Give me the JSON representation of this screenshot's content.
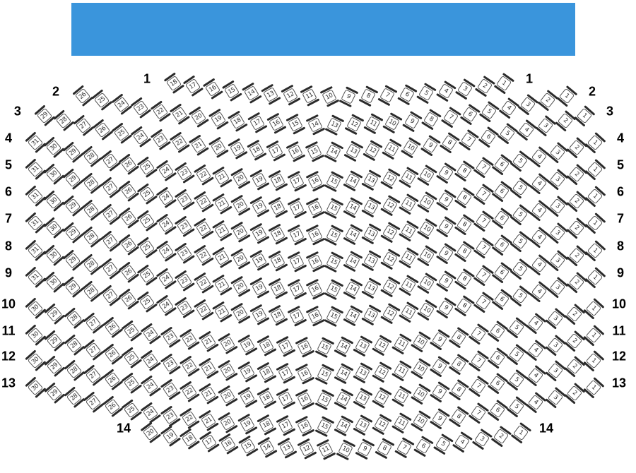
{
  "page": {
    "background": "#ffffff"
  },
  "stage": {
    "color": "#3a95dc"
  },
  "seatmap": {
    "seat_style": {
      "fill": "#ffffff",
      "frame_bar_color": "#2b2b2b",
      "border_color": "#4f4f4f",
      "number_color": "#2e2e2e"
    },
    "row_label_color": "#000000",
    "rows": [
      {
        "label": "1",
        "seats": [
          18,
          17,
          16,
          15,
          14,
          13,
          12,
          11,
          10,
          9,
          8,
          7,
          6,
          5,
          4,
          3,
          2,
          1
        ]
      },
      {
        "label": "2",
        "seats": [
          26,
          25,
          24,
          23,
          22,
          21,
          20,
          19,
          18,
          17,
          16,
          15,
          14,
          13,
          12,
          11,
          10,
          9,
          8,
          7,
          6,
          5,
          4,
          3,
          2,
          1
        ]
      },
      {
        "label": "3",
        "seats": [
          29,
          28,
          27,
          26,
          25,
          24,
          23,
          22,
          21,
          20,
          19,
          18,
          17,
          16,
          15,
          14,
          13,
          12,
          11,
          10,
          9,
          8,
          7,
          6,
          5,
          4,
          3,
          2,
          1
        ]
      },
      {
        "label": "4",
        "seats": [
          31,
          30,
          29,
          28,
          27,
          26,
          25,
          24,
          23,
          22,
          21,
          20,
          19,
          18,
          17,
          16,
          15,
          14,
          13,
          12,
          11,
          10,
          9,
          8,
          7,
          6,
          5,
          4,
          3,
          2,
          1
        ]
      },
      {
        "label": "5",
        "seats": [
          31,
          30,
          29,
          28,
          27,
          26,
          25,
          24,
          23,
          22,
          21,
          20,
          19,
          18,
          17,
          16,
          15,
          14,
          13,
          12,
          11,
          10,
          9,
          8,
          7,
          6,
          5,
          4,
          3,
          2,
          1
        ]
      },
      {
        "label": "6",
        "seats": [
          31,
          30,
          29,
          28,
          27,
          26,
          25,
          24,
          23,
          22,
          21,
          20,
          19,
          18,
          17,
          16,
          15,
          14,
          13,
          12,
          11,
          10,
          9,
          8,
          7,
          6,
          5,
          4,
          3,
          2,
          1
        ]
      },
      {
        "label": "7",
        "seats": [
          31,
          30,
          29,
          28,
          27,
          26,
          25,
          24,
          23,
          22,
          21,
          20,
          19,
          18,
          17,
          16,
          15,
          14,
          13,
          12,
          11,
          10,
          9,
          8,
          7,
          6,
          5,
          4,
          3,
          2,
          1
        ]
      },
      {
        "label": "8",
        "seats": [
          31,
          30,
          29,
          28,
          27,
          26,
          25,
          24,
          23,
          22,
          21,
          20,
          19,
          18,
          17,
          16,
          15,
          14,
          13,
          12,
          11,
          10,
          9,
          8,
          7,
          6,
          5,
          4,
          3,
          2,
          1
        ]
      },
      {
        "label": "9",
        "seats": [
          31,
          30,
          29,
          28,
          27,
          26,
          25,
          24,
          23,
          22,
          21,
          20,
          19,
          18,
          17,
          16,
          15,
          14,
          13,
          12,
          11,
          10,
          9,
          8,
          7,
          6,
          5,
          4,
          3,
          2,
          1
        ]
      },
      {
        "label": "10",
        "seats": [
          30,
          29,
          28,
          27,
          26,
          25,
          24,
          23,
          22,
          21,
          20,
          19,
          18,
          17,
          16,
          15,
          14,
          13,
          12,
          11,
          10,
          9,
          8,
          7,
          6,
          5,
          4,
          3,
          2,
          1
        ]
      },
      {
        "label": "11",
        "seats": [
          30,
          29,
          28,
          27,
          26,
          25,
          24,
          23,
          22,
          21,
          20,
          19,
          18,
          17,
          16,
          15,
          14,
          13,
          12,
          11,
          10,
          9,
          8,
          7,
          6,
          5,
          4,
          3,
          2,
          1
        ]
      },
      {
        "label": "12",
        "seats": [
          30,
          29,
          28,
          27,
          26,
          25,
          24,
          23,
          22,
          21,
          20,
          19,
          18,
          17,
          16,
          15,
          14,
          13,
          12,
          11,
          10,
          9,
          8,
          7,
          6,
          5,
          4,
          3,
          2,
          1
        ]
      },
      {
        "label": "13",
        "seats": [
          30,
          29,
          28,
          27,
          26,
          25,
          24,
          23,
          22,
          21,
          20,
          19,
          18,
          17,
          16,
          15,
          14,
          13,
          12,
          11,
          10,
          9,
          8,
          7,
          6,
          5,
          4,
          3,
          2,
          1
        ]
      },
      {
        "label": "14",
        "seats": [
          20,
          19,
          18,
          17,
          16,
          15,
          14,
          13,
          12,
          11,
          10,
          9,
          8,
          7,
          6,
          5,
          4,
          3,
          2,
          1
        ]
      }
    ]
  }
}
